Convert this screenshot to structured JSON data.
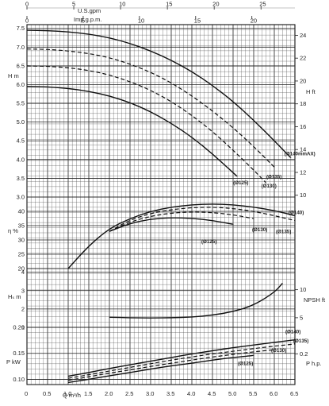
{
  "chart_data": {
    "type": "line",
    "top_axes": {
      "us_gpm": {
        "label": "U.S.gpm",
        "ticks": [
          "0",
          "5",
          "10",
          "15",
          "20",
          "25"
        ]
      },
      "imp_gpm": {
        "label": "Imp.g.p.m.",
        "ticks": [
          "0",
          "5",
          "10",
          "15",
          "20"
        ]
      }
    },
    "bottom_axis": {
      "label": "Q m³/h",
      "ticks": [
        "0",
        "0.5",
        "1.0",
        "1.5",
        "2.0",
        "2.5",
        "3.0",
        "3.5",
        "4.0",
        "4.5",
        "5.0",
        "5.5",
        "6.0",
        "6.5"
      ],
      "range": [
        0,
        6.5
      ]
    },
    "panels": [
      {
        "id": "head",
        "left_axis": {
          "label": "H m",
          "range": [
            3.0,
            7.6
          ],
          "ticks": [
            "3.0",
            "3.5",
            "4.0",
            "4.5",
            "5.0",
            "5.5",
            "6.0",
            "6.5",
            "7.0",
            "7.5"
          ]
        },
        "right_axis": {
          "label": "H ft",
          "ticks": [
            "10",
            "12",
            "14",
            "16",
            "18",
            "20",
            "22",
            "24"
          ]
        },
        "series": [
          {
            "name": "Ø140mmAX",
            "style": "solid",
            "x": [
              0,
              0.5,
              1.0,
              1.5,
              2.0,
              2.5,
              3.0,
              3.5,
              4.0,
              4.5,
              5.0,
              5.5,
              6.0,
              6.4
            ],
            "y": [
              7.45,
              7.44,
              7.41,
              7.35,
              7.25,
              7.1,
              6.9,
              6.65,
              6.35,
              5.98,
              5.55,
              5.05,
              4.5,
              4.05
            ]
          },
          {
            "name": "Ø135",
            "style": "dashed",
            "x": [
              0,
              0.5,
              1.0,
              1.5,
              2.0,
              2.5,
              3.0,
              3.5,
              4.0,
              4.5,
              5.0,
              5.5,
              6.0
            ],
            "y": [
              6.95,
              6.94,
              6.9,
              6.83,
              6.72,
              6.55,
              6.33,
              6.05,
              5.7,
              5.3,
              4.85,
              4.35,
              3.8
            ]
          },
          {
            "name": "Ø130",
            "style": "dashed",
            "x": [
              0,
              0.5,
              1.0,
              1.5,
              2.0,
              2.5,
              3.0,
              3.5,
              4.0,
              4.5,
              5.0,
              5.5,
              5.8
            ],
            "y": [
              6.5,
              6.49,
              6.45,
              6.38,
              6.26,
              6.08,
              5.85,
              5.55,
              5.18,
              4.75,
              4.25,
              3.72,
              3.38
            ]
          },
          {
            "name": "Ø125",
            "style": "solid",
            "x": [
              0,
              0.5,
              1.0,
              1.5,
              2.0,
              2.5,
              3.0,
              3.5,
              4.0,
              4.5,
              5.0,
              5.1
            ],
            "y": [
              5.95,
              5.94,
              5.9,
              5.82,
              5.7,
              5.52,
              5.28,
              4.97,
              4.6,
              4.15,
              3.65,
              3.55
            ]
          }
        ],
        "curve_labels": [
          "(Ø140mmAX)",
          "(Ø135)",
          "(Ø130)",
          "(Ø125)"
        ]
      },
      {
        "id": "efficiency",
        "left_axis": {
          "label": "η %",
          "range": [
            20,
            45
          ],
          "ticks": [
            "20",
            "25",
            "30",
            "35",
            "40"
          ]
        },
        "series": [
          {
            "name": "Ø140",
            "style": "solid",
            "x": [
              1.0,
              1.5,
              2.0,
              2.5,
              3.0,
              3.5,
              4.0,
              4.5,
              5.0,
              5.5,
              6.0,
              6.5
            ],
            "y": [
              20,
              28,
              34,
              37.5,
              40,
              41.5,
              42.3,
              42.6,
              42.3,
              41.5,
              40.3,
              38.5
            ]
          },
          {
            "name": "Ø135",
            "style": "dashed",
            "x": [
              2.0,
              2.5,
              3.0,
              3.5,
              4.0,
              4.5,
              5.0,
              5.5,
              6.0,
              6.5
            ],
            "y": [
              33,
              37,
              39.3,
              40.6,
              41.3,
              41.5,
              41.0,
              40.0,
              38.5,
              36.8
            ]
          },
          {
            "name": "Ø130",
            "style": "dashed",
            "x": [
              2.0,
              2.5,
              3.0,
              3.5,
              4.0,
              4.5,
              5.0,
              5.5
            ],
            "y": [
              33,
              36.3,
              38.3,
              39.4,
              39.8,
              39.6,
              38.8,
              37.5
            ]
          },
          {
            "name": "Ø125",
            "style": "solid",
            "x": [
              2.0,
              2.5,
              3.0,
              3.5,
              4.0,
              4.5,
              5.0
            ],
            "y": [
              33,
              35.8,
              37.3,
              37.8,
              37.6,
              36.8,
              35.5
            ]
          }
        ],
        "curve_labels": [
          "(Ø140)",
          "(Ø135)",
          "(Ø130)",
          "(Ø125)"
        ]
      },
      {
        "id": "npsh",
        "left_axis": {
          "label": "Hₛ m",
          "range": [
            1,
            4.2
          ],
          "ticks": [
            "1",
            "2",
            "3",
            "4"
          ]
        },
        "right_axis": {
          "label": "NPSH ft",
          "ticks": [
            "5",
            "10"
          ]
        },
        "series": [
          {
            "name": "NPSH",
            "style": "solid",
            "x": [
              2.0,
              2.5,
              3.0,
              3.5,
              4.0,
              4.5,
              5.0,
              5.5,
              6.0,
              6.2
            ],
            "y": [
              1.55,
              1.52,
              1.51,
              1.52,
              1.56,
              1.66,
              1.85,
              2.2,
              2.9,
              3.4
            ]
          }
        ]
      },
      {
        "id": "power",
        "left_axis": {
          "label": "P kW",
          "range": [
            0.09,
            0.2
          ],
          "ticks": [
            "0.10",
            "0.15",
            "0.20"
          ]
        },
        "right_axis": {
          "label": "P h.p.",
          "ticks": [
            "0.1",
            "0.2"
          ]
        },
        "series": [
          {
            "name": "Ø140",
            "style": "solid",
            "x": [
              1.0,
              1.5,
              2.0,
              2.5,
              3.0,
              3.5,
              4.0,
              4.5,
              5.0,
              5.5,
              6.0,
              6.5
            ],
            "y": [
              0.106,
              0.113,
              0.121,
              0.128,
              0.135,
              0.142,
              0.149,
              0.155,
              0.161,
              0.166,
              0.171,
              0.176
            ]
          },
          {
            "name": "Ø135",
            "style": "dashed",
            "x": [
              1.0,
              1.5,
              2.0,
              2.5,
              3.0,
              3.5,
              4.0,
              4.5,
              5.0,
              5.5,
              6.0,
              6.5
            ],
            "y": [
              0.102,
              0.109,
              0.116,
              0.123,
              0.13,
              0.137,
              0.143,
              0.149,
              0.154,
              0.159,
              0.164,
              0.168
            ]
          },
          {
            "name": "Ø130",
            "style": "dashed",
            "x": [
              1.0,
              1.5,
              2.0,
              2.5,
              3.0,
              3.5,
              4.0,
              4.5,
              5.0,
              5.5,
              6.0
            ],
            "y": [
              0.098,
              0.105,
              0.112,
              0.118,
              0.125,
              0.131,
              0.137,
              0.143,
              0.148,
              0.153,
              0.157
            ]
          },
          {
            "name": "Ø125",
            "style": "solid",
            "x": [
              1.0,
              1.5,
              2.0,
              2.5,
              3.0,
              3.5,
              4.0,
              4.5,
              5.0,
              5.5
            ],
            "y": [
              0.094,
              0.1,
              0.107,
              0.113,
              0.12,
              0.126,
              0.131,
              0.137,
              0.142,
              0.146
            ]
          }
        ],
        "curve_labels": [
          "(Ø140)",
          "(Ø135)",
          "(Ø130)",
          "(Ø125)"
        ]
      }
    ],
    "grid": true
  }
}
